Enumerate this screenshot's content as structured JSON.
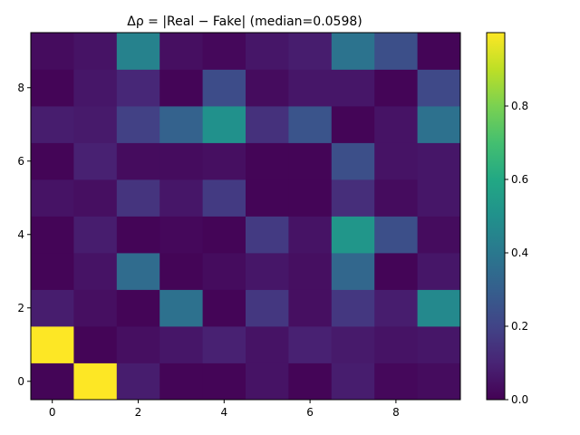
{
  "chart_data": {
    "type": "heatmap",
    "title": "Δρ = |Real − Fake| (median=0.0598)",
    "xlabel": "",
    "ylabel": "",
    "x_ticks": [
      "0",
      "2",
      "4",
      "6",
      "8"
    ],
    "y_ticks": [
      "0",
      "2",
      "4",
      "6",
      "8"
    ],
    "xlim": [
      -0.5,
      9.5
    ],
    "ylim": [
      -0.5,
      9.5
    ],
    "origin": "lower",
    "colormap": "viridis",
    "clim": [
      0,
      1
    ],
    "colorbar_ticks": [
      "0.0",
      "0.2",
      "0.4",
      "0.6",
      "0.8"
    ],
    "colorbar_tick_values": [
      0.0,
      0.2,
      0.4,
      0.6,
      0.8
    ],
    "values": [
      [
        0.01,
        1.0,
        0.08,
        0.01,
        0.01,
        0.05,
        0.01,
        0.08,
        0.02,
        0.03
      ],
      [
        1.0,
        0.01,
        0.04,
        0.06,
        0.09,
        0.05,
        0.09,
        0.07,
        0.05,
        0.06
      ],
      [
        0.08,
        0.04,
        0.01,
        0.37,
        0.01,
        0.16,
        0.04,
        0.16,
        0.08,
        0.47
      ],
      [
        0.01,
        0.05,
        0.35,
        0.01,
        0.03,
        0.06,
        0.04,
        0.33,
        0.01,
        0.06
      ],
      [
        0.01,
        0.08,
        0.01,
        0.02,
        0.01,
        0.17,
        0.05,
        0.52,
        0.24,
        0.03
      ],
      [
        0.05,
        0.04,
        0.15,
        0.06,
        0.17,
        0.01,
        0.01,
        0.13,
        0.03,
        0.06
      ],
      [
        0.01,
        0.09,
        0.03,
        0.03,
        0.04,
        0.01,
        0.01,
        0.24,
        0.05,
        0.06
      ],
      [
        0.08,
        0.07,
        0.19,
        0.31,
        0.5,
        0.14,
        0.26,
        0.01,
        0.05,
        0.37
      ],
      [
        0.01,
        0.06,
        0.11,
        0.01,
        0.23,
        0.03,
        0.06,
        0.06,
        0.01,
        0.22
      ],
      [
        0.03,
        0.05,
        0.44,
        0.04,
        0.02,
        0.06,
        0.08,
        0.38,
        0.24,
        0.01
      ]
    ]
  }
}
